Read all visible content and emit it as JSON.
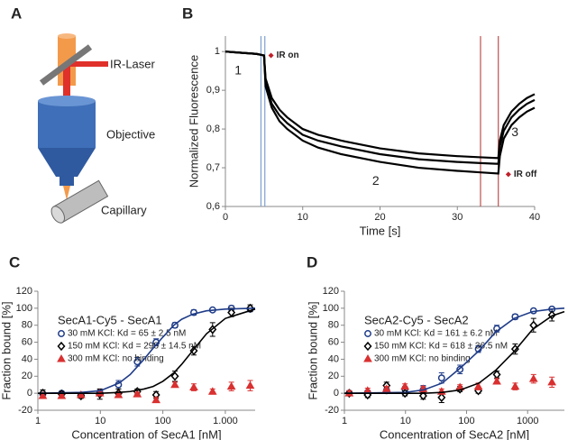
{
  "diagram": {
    "panel_label": "A",
    "labels": [
      "IR-Laser",
      "Objective",
      "Capillary"
    ]
  },
  "chart_data": [
    {
      "type": "line",
      "panel_label": "B",
      "x_label": "Time [s]",
      "y_label": "Normalized Fluorescence",
      "x": [
        0,
        2,
        4,
        5,
        5.2,
        6,
        7,
        8,
        10,
        12,
        15,
        20,
        25,
        30,
        33,
        35.3,
        35.5,
        36,
        37,
        38,
        39,
        40
      ],
      "series": [
        {
          "color": "#000000",
          "values": [
            1.0,
            0.997,
            0.994,
            0.99,
            0.93,
            0.88,
            0.85,
            0.83,
            0.8,
            0.785,
            0.77,
            0.75,
            0.737,
            0.73,
            0.727,
            0.725,
            0.77,
            0.81,
            0.845,
            0.865,
            0.88,
            0.89
          ]
        },
        {
          "color": "#000000",
          "values": [
            1.0,
            0.997,
            0.994,
            0.99,
            0.92,
            0.865,
            0.835,
            0.815,
            0.785,
            0.77,
            0.755,
            0.735,
            0.722,
            0.715,
            0.712,
            0.71,
            0.755,
            0.795,
            0.83,
            0.85,
            0.865,
            0.875
          ]
        },
        {
          "color": "#000000",
          "values": [
            1.0,
            0.997,
            0.994,
            0.99,
            0.91,
            0.855,
            0.82,
            0.8,
            0.77,
            0.752,
            0.735,
            0.715,
            0.7,
            0.692,
            0.688,
            0.685,
            0.73,
            0.775,
            0.81,
            0.83,
            0.845,
            0.855
          ]
        }
      ],
      "markers": [
        {
          "x": 4.6,
          "color": "#7f9fcf"
        },
        {
          "x": 5.1,
          "color": "#7f9fcf"
        },
        {
          "x": 33,
          "color": "#c0504d"
        },
        {
          "x": 35.3,
          "color": "#c0504d"
        }
      ],
      "annotations": [
        "1",
        "2",
        "3",
        "IR on",
        "IR off"
      ],
      "xlim": [
        0,
        40
      ],
      "xticks": [
        0,
        10,
        20,
        30,
        40
      ],
      "ylim": [
        0.6,
        1.04
      ],
      "yticks": [
        {
          "value": 0.6,
          "label": "0,6"
        },
        {
          "value": 0.7,
          "label": "0,7"
        },
        {
          "value": 0.8,
          "label": "0,8"
        },
        {
          "value": 0.9,
          "label": "0,9"
        },
        1
      ]
    },
    {
      "type": "scatter",
      "panel_label": "C",
      "title": "SecA1-Cy5 - SecA1",
      "x_label": "Concentration of SecA1 [nM]",
      "y_label": "Fraction bound [%]",
      "log_x": true,
      "x": [
        1.2,
        2.4,
        4.9,
        9.8,
        19.5,
        39,
        78,
        156,
        313,
        625,
        1250,
        2500
      ],
      "series": [
        {
          "name": "30 mM KCl: Kd = 65 ± 2.5 nM",
          "color": "#1f3c88",
          "marker": "circle",
          "values": [
            -1,
            0,
            -2,
            1,
            10,
            37,
            60,
            80,
            95,
            98,
            100,
            99
          ],
          "errors": [
            3,
            2,
            2,
            2,
            5,
            5,
            4,
            3,
            3,
            2,
            3,
            2
          ]
        },
        {
          "name": "150 mM KCl: Kd = 298 ± 14.5 nM",
          "color": "#000000",
          "marker": "diamond",
          "values": [
            0,
            -1,
            -3,
            -1,
            0,
            2,
            -2,
            20,
            50,
            75,
            95,
            100
          ],
          "errors": [
            4,
            3,
            3,
            6,
            5,
            3,
            4,
            6,
            5,
            8,
            5,
            4
          ]
        },
        {
          "name": "300 mM KCl: no binding",
          "color": "#d93030",
          "marker": "triangle",
          "values": [
            -3,
            -3,
            -2,
            0,
            -2,
            -1,
            -8,
            10,
            7,
            2,
            8,
            9
          ],
          "errors": [
            3,
            2,
            2,
            2,
            2,
            2,
            3,
            3,
            4,
            3,
            5,
            6
          ]
        },
        {
          "color": "#1f3c88",
          "x": [
            1,
            5,
            10,
            20,
            30,
            50,
            70,
            100,
            150,
            200,
            300,
            500,
            1000,
            3000
          ],
          "values": [
            0,
            1,
            3,
            12,
            22,
            40,
            53,
            66,
            80,
            87,
            93,
            97,
            99,
            100
          ]
        },
        {
          "color": "#000000",
          "x": [
            1,
            5,
            10,
            20,
            30,
            50,
            70,
            100,
            150,
            200,
            300,
            500,
            1000,
            3000
          ],
          "values": [
            0,
            0,
            0,
            1,
            2,
            5,
            8,
            14,
            24,
            34,
            50,
            70,
            88,
            99
          ]
        }
      ],
      "xlim": [
        1,
        3000
      ],
      "xticks": [
        1,
        10,
        100,
        {
          "value": 1000,
          "label": "1.000"
        }
      ],
      "ylim": [
        -20,
        120
      ],
      "yticks": [
        -20,
        0,
        20,
        40,
        60,
        80,
        100,
        120
      ]
    },
    {
      "type": "scatter",
      "panel_label": "D",
      "title": "SecA2-Cy5 - SecA2",
      "x_label": "Concentration of SecA2 [nM]",
      "y_label": "Fraction bound [%]",
      "log_x": true,
      "x": [
        1.2,
        2.4,
        4.9,
        9.8,
        19.5,
        39,
        78,
        156,
        313,
        625,
        1250,
        2500
      ],
      "series": [
        {
          "name": "30 mM KCl: Kd = 161 ± 6.2 nM",
          "color": "#1f3c88",
          "marker": "circle",
          "values": [
            0,
            1,
            3,
            5,
            4,
            18,
            28,
            52,
            76,
            90,
            97,
            99
          ],
          "errors": [
            3,
            2,
            3,
            3,
            5,
            6,
            5,
            4,
            4,
            3,
            2,
            2
          ]
        },
        {
          "name": "150 mM KCl: Kd = 618 ± 36.5 nM",
          "color": "#000000",
          "marker": "diamond",
          "values": [
            0,
            -2,
            9,
            0,
            -3,
            -5,
            5,
            3,
            22,
            52,
            80,
            92
          ],
          "errors": [
            3,
            3,
            4,
            3,
            4,
            6,
            3,
            3,
            4,
            6,
            8,
            7
          ]
        },
        {
          "name": "300 mM KCl: no binding",
          "color": "#d93030",
          "marker": "triangle",
          "values": [
            0,
            3,
            5,
            8,
            5,
            2,
            7,
            8,
            14,
            8,
            17,
            13
          ],
          "errors": [
            3,
            3,
            3,
            3,
            3,
            3,
            3,
            4,
            3,
            4,
            5,
            6
          ]
        },
        {
          "color": "#1f3c88",
          "x": [
            1,
            10,
            20,
            40,
            80,
            160,
            300,
            600,
            1200,
            2500,
            4000
          ],
          "values": [
            0,
            1,
            4,
            12,
            30,
            50,
            72,
            88,
            96,
            99,
            100
          ]
        },
        {
          "color": "#000000",
          "x": [
            1,
            10,
            20,
            40,
            80,
            160,
            300,
            600,
            1200,
            2500,
            4000
          ],
          "values": [
            0,
            0,
            0,
            1,
            4,
            12,
            27,
            49,
            75,
            91,
            96
          ]
        }
      ],
      "xlim": [
        1,
        4000
      ],
      "xticks": [
        1,
        10,
        100,
        1000
      ],
      "ylim": [
        -20,
        120
      ],
      "yticks": [
        -20,
        0,
        20,
        40,
        60,
        80,
        100,
        120
      ]
    }
  ]
}
